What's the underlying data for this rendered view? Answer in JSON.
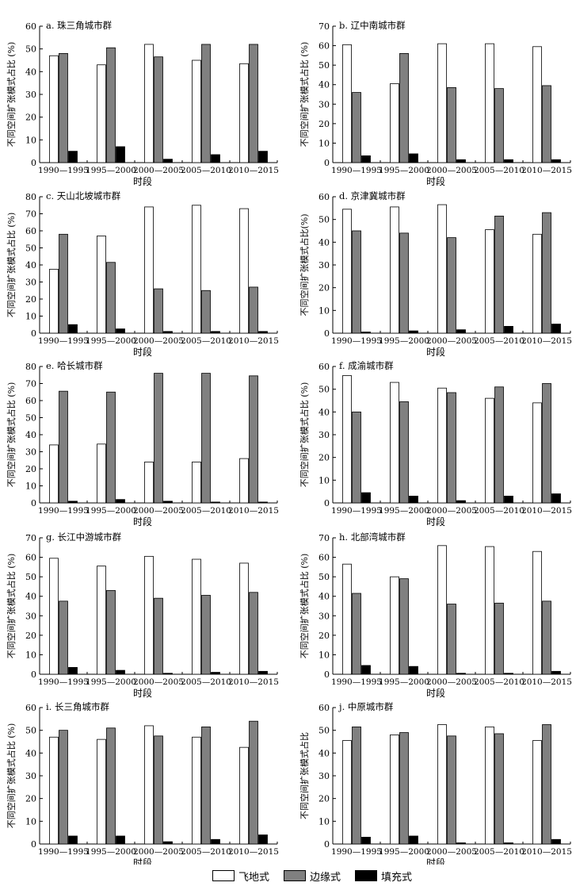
{
  "figure": {
    "xlabel": "时段",
    "ylabel": "不同空间扩张模式占比",
    "legend": [
      "飞地式",
      "边缘式",
      "填充式"
    ],
    "colors": {
      "feidi": "#ffffff",
      "bianyuan": "#808080",
      "tianchong": "#000000"
    }
  },
  "chart_data": [
    {
      "type": "bar",
      "title": "a. 珠三角城市群",
      "ylabel": "不同空间扩张模式占比 (%)",
      "xlabel": "时段",
      "ylim": [
        0,
        60
      ],
      "yticks": [
        0,
        10,
        20,
        30,
        40,
        50,
        60
      ],
      "categories": [
        "1990—1995",
        "1995—2000",
        "2000—2005",
        "2005—2010",
        "2010—2015"
      ],
      "series": [
        {
          "name": "飞地式",
          "values": [
            47,
            43,
            52,
            45,
            43.5
          ]
        },
        {
          "name": "边缘式",
          "values": [
            48,
            50.5,
            46.5,
            52,
            52
          ]
        },
        {
          "name": "填充式",
          "values": [
            5,
            7,
            1.5,
            3.5,
            5
          ]
        }
      ]
    },
    {
      "type": "bar",
      "title": "b. 辽中南城市群",
      "ylabel": "不同空间扩张模式占比 (%)",
      "xlabel": "时段",
      "ylim": [
        0,
        70
      ],
      "yticks": [
        0,
        10,
        20,
        30,
        40,
        50,
        60,
        70
      ],
      "categories": [
        "1990—1995",
        "1995—2000",
        "2000—2005",
        "2005—2010",
        "2010—2015"
      ],
      "series": [
        {
          "name": "飞地式",
          "values": [
            60.5,
            40.5,
            61,
            61,
            59.5
          ]
        },
        {
          "name": "边缘式",
          "values": [
            36,
            56,
            38.5,
            38,
            39.5
          ]
        },
        {
          "name": "填充式",
          "values": [
            3.5,
            4.5,
            1.5,
            1.5,
            1.5
          ]
        }
      ]
    },
    {
      "type": "bar",
      "title": "c. 天山北坡城市群",
      "ylabel": "不同空间扩张模式占比 (%)",
      "xlabel": "时段",
      "ylim": [
        0,
        80
      ],
      "yticks": [
        0,
        10,
        20,
        30,
        40,
        50,
        60,
        70,
        80
      ],
      "categories": [
        "1990—1995",
        "1995—2000",
        "2000—2005",
        "2005—2010",
        "2010—2015"
      ],
      "series": [
        {
          "name": "飞地式",
          "values": [
            37.5,
            57,
            74,
            75,
            73
          ]
        },
        {
          "name": "边缘式",
          "values": [
            58,
            41.5,
            26,
            25,
            27
          ]
        },
        {
          "name": "填充式",
          "values": [
            5,
            2.5,
            1,
            1,
            1
          ]
        }
      ]
    },
    {
      "type": "bar",
      "title": "d. 京津冀城市群",
      "ylabel": "不同空间扩张模式占比(%)",
      "xlabel": "时段",
      "ylim": [
        0,
        60
      ],
      "yticks": [
        0,
        10,
        20,
        30,
        40,
        50,
        60
      ],
      "categories": [
        "1990—1995",
        "1995—2000",
        "2000—2005",
        "2005—2010",
        "2010—2015"
      ],
      "series": [
        {
          "name": "飞地式",
          "values": [
            54.5,
            55.5,
            56.5,
            45.5,
            43.5
          ]
        },
        {
          "name": "边缘式",
          "values": [
            45,
            44,
            42,
            51.5,
            53
          ]
        },
        {
          "name": "填充式",
          "values": [
            0.5,
            1,
            1.5,
            3,
            4
          ]
        }
      ]
    },
    {
      "type": "bar",
      "title": "e. 哈长城市群",
      "ylabel": "不同空间扩张模式占比 (%)",
      "xlabel": "时段",
      "ylim": [
        0,
        80
      ],
      "yticks": [
        0,
        10,
        20,
        30,
        40,
        50,
        60,
        70,
        80
      ],
      "categories": [
        "1990—1995",
        "1995—2000",
        "2000—2005",
        "2005—2010",
        "2010—2015"
      ],
      "series": [
        {
          "name": "飞地式",
          "values": [
            34,
            34.5,
            24,
            24,
            26
          ]
        },
        {
          "name": "边缘式",
          "values": [
            65.5,
            65,
            76,
            76,
            74.5
          ]
        },
        {
          "name": "填充式",
          "values": [
            1,
            2,
            1,
            0.5,
            0.5
          ]
        }
      ]
    },
    {
      "type": "bar",
      "title": "f. 成渝城市群",
      "ylabel": "不同空间扩张模式占比 (%)",
      "xlabel": "时段",
      "ylim": [
        0,
        60
      ],
      "yticks": [
        0,
        10,
        20,
        30,
        40,
        50,
        60
      ],
      "categories": [
        "1990—1995",
        "1995—2000",
        "2000—2005",
        "2005—2010",
        "2010—2015"
      ],
      "series": [
        {
          "name": "飞地式",
          "values": [
            56,
            53,
            50.5,
            46,
            44
          ]
        },
        {
          "name": "边缘式",
          "values": [
            40,
            44.5,
            48.5,
            51,
            52.5
          ]
        },
        {
          "name": "填充式",
          "values": [
            4.5,
            3,
            1,
            3,
            4
          ]
        }
      ]
    },
    {
      "type": "bar",
      "title": "g. 长江中游城市群",
      "ylabel": "不同空间扩张模式占比 (%)",
      "xlabel": "时段",
      "ylim": [
        0,
        70
      ],
      "yticks": [
        0,
        10,
        20,
        30,
        40,
        50,
        60,
        70
      ],
      "categories": [
        "1990—1995",
        "1995—2000",
        "2000—2005",
        "2005—2010",
        "2010—2015"
      ],
      "series": [
        {
          "name": "飞地式",
          "values": [
            59.5,
            55.5,
            60.5,
            59,
            57
          ]
        },
        {
          "name": "边缘式",
          "values": [
            37.5,
            43,
            39,
            40.5,
            42
          ]
        },
        {
          "name": "填充式",
          "values": [
            3.5,
            2,
            0.5,
            1,
            1.5
          ]
        }
      ]
    },
    {
      "type": "bar",
      "title": "h. 北部湾城市群",
      "ylabel": "不同空间扩张模式占比 (%)",
      "xlabel": "时段",
      "ylim": [
        0,
        70
      ],
      "yticks": [
        0,
        10,
        20,
        30,
        40,
        50,
        60,
        70
      ],
      "categories": [
        "1990—1995",
        "1995—2000",
        "2000—2005",
        "2005—2010",
        "2010—2015"
      ],
      "series": [
        {
          "name": "飞地式",
          "values": [
            56.5,
            50,
            66,
            65.5,
            63
          ]
        },
        {
          "name": "边缘式",
          "values": [
            41.5,
            49,
            36,
            36.5,
            37.5
          ]
        },
        {
          "name": "填充式",
          "values": [
            4.5,
            4,
            0.5,
            0.5,
            1.5
          ]
        }
      ]
    },
    {
      "type": "bar",
      "title": "i. 长三角城市群",
      "ylabel": "不同空间扩张模式占比 (%)",
      "xlabel": "时段",
      "ylim": [
        0,
        60
      ],
      "yticks": [
        0,
        10,
        20,
        30,
        40,
        50,
        60
      ],
      "categories": [
        "1990—1995",
        "1995—2000",
        "2000—2005",
        "2005—2010",
        "2010—2015"
      ],
      "series": [
        {
          "name": "飞地式",
          "values": [
            47,
            46,
            52,
            47,
            42.5
          ]
        },
        {
          "name": "边缘式",
          "values": [
            50,
            51,
            47.5,
            51.5,
            54
          ]
        },
        {
          "name": "填充式",
          "values": [
            3.5,
            3.5,
            1,
            2,
            4
          ]
        }
      ]
    },
    {
      "type": "bar",
      "title": "j. 中原城市群",
      "ylabel": "不同空间扩张模式占比",
      "xlabel": "时段",
      "ylim": [
        0,
        60
      ],
      "yticks": [
        0,
        10,
        20,
        30,
        40,
        50,
        60
      ],
      "categories": [
        "1990—1995",
        "1995—2000",
        "2000—2005",
        "2005—2010",
        "2010—2015"
      ],
      "series": [
        {
          "name": "飞地式",
          "values": [
            45.5,
            48,
            52.5,
            51.5,
            45.5
          ]
        },
        {
          "name": "边缘式",
          "values": [
            51.5,
            49,
            47.5,
            48.5,
            52.5
          ]
        },
        {
          "name": "填充式",
          "values": [
            3,
            3.5,
            0.5,
            0.5,
            2
          ]
        }
      ]
    }
  ]
}
